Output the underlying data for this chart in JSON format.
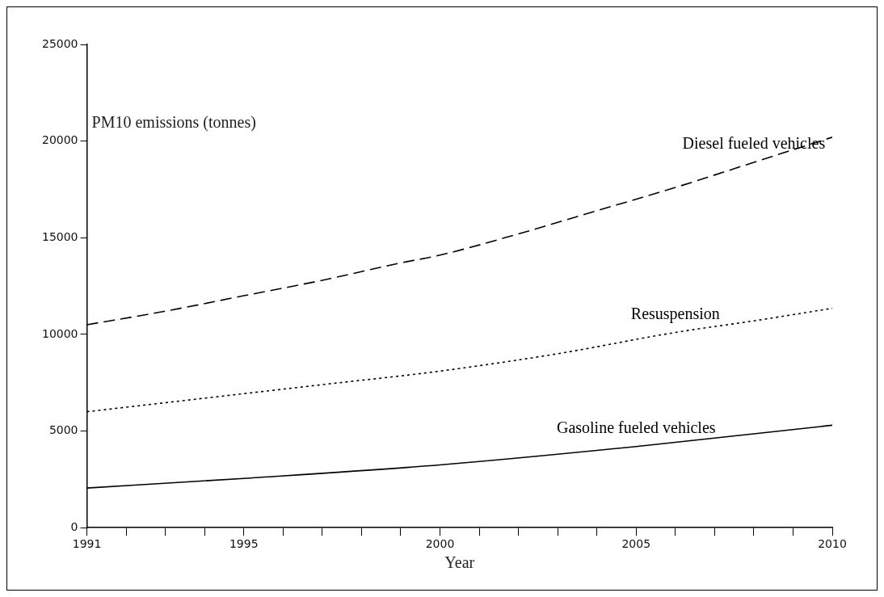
{
  "chart_data": {
    "type": "line",
    "xlabel": "Year",
    "ylabel": "PM10 emissions (tonnes)",
    "xlim": [
      1991,
      2010
    ],
    "ylim": [
      0,
      25000
    ],
    "xticks": [
      1991,
      {
        "value": 1992,
        "label": null
      },
      {
        "value": 1993,
        "label": null
      },
      {
        "value": 1994,
        "label": null
      },
      1995,
      {
        "value": 1996,
        "label": null
      },
      {
        "value": 1997,
        "label": null
      },
      {
        "value": 1998,
        "label": null
      },
      {
        "value": 1999,
        "label": null
      },
      2000,
      {
        "value": 2001,
        "label": null
      },
      {
        "value": 2002,
        "label": null
      },
      {
        "value": 2003,
        "label": null
      },
      {
        "value": 2004,
        "label": null
      },
      2005,
      {
        "value": 2006,
        "label": null
      },
      {
        "value": 2007,
        "label": null
      },
      {
        "value": 2008,
        "label": null
      },
      {
        "value": 2009,
        "label": null
      },
      2010
    ],
    "yticks": [
      0,
      5000,
      10000,
      15000,
      20000,
      25000
    ],
    "grid": false,
    "legend": false,
    "marker": "none",
    "series": [
      {
        "name": "Diesel fueled vehicles",
        "color": "#000000",
        "line_style": "dashed",
        "x": [
          1991,
          1993,
          1995,
          1997,
          1999,
          2000,
          2002,
          2004,
          2006,
          2008,
          2010
        ],
        "values": [
          10500,
          11200,
          12000,
          12800,
          13700,
          14100,
          15200,
          16400,
          17600,
          18900,
          20200
        ]
      },
      {
        "name": "Resuspension",
        "color": "#000000",
        "line_style": "dotted",
        "x": [
          1991,
          1994,
          1997,
          2000,
          2003,
          2006,
          2008,
          2010
        ],
        "values": [
          6000,
          6700,
          7400,
          8100,
          9000,
          10100,
          10700,
          11350
        ]
      },
      {
        "name": "Gasoline fueled vehicles",
        "color": "#000000",
        "line_style": "solid",
        "x": [
          1991,
          1995,
          2000,
          2005,
          2010
        ],
        "values": [
          2050,
          2550,
          3250,
          4200,
          5300
        ]
      }
    ]
  }
}
